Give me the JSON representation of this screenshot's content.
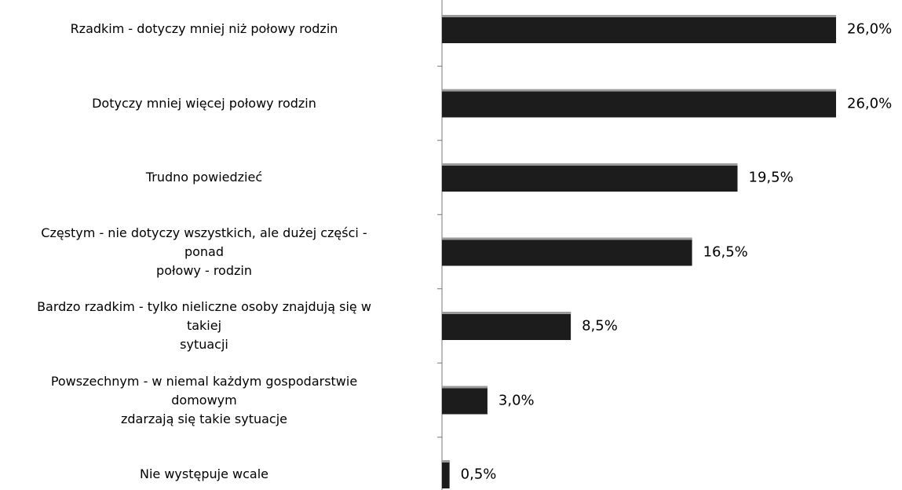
{
  "chart_data": {
    "type": "bar",
    "orientation": "horizontal",
    "categories": [
      "Rzadkim - dotyczy mniej niż połowy rodzin",
      "Dotyczy mniej więcej połowy rodzin",
      "Trudno powiedzieć",
      "Częstym - nie dotyczy wszystkich, ale dużej części -\nponad\npołowy - rodzin",
      "Bardzo rzadkim - tylko nieliczne osoby znajdują się w\ntakiej\nsytuacji",
      "Powszechnym - w niemal każdym gospodarstwie\ndomowym\nzdarzają się takie sytuacje",
      "Nie występuje wcale"
    ],
    "values": [
      26.0,
      26.0,
      19.5,
      16.5,
      8.5,
      3.0,
      0.5
    ],
    "value_labels": [
      "26,0%",
      "26,0%",
      "19,5%",
      "16,5%",
      "8,5%",
      "3,0%",
      "0,5%"
    ],
    "color": "#1c1c1c"
  }
}
